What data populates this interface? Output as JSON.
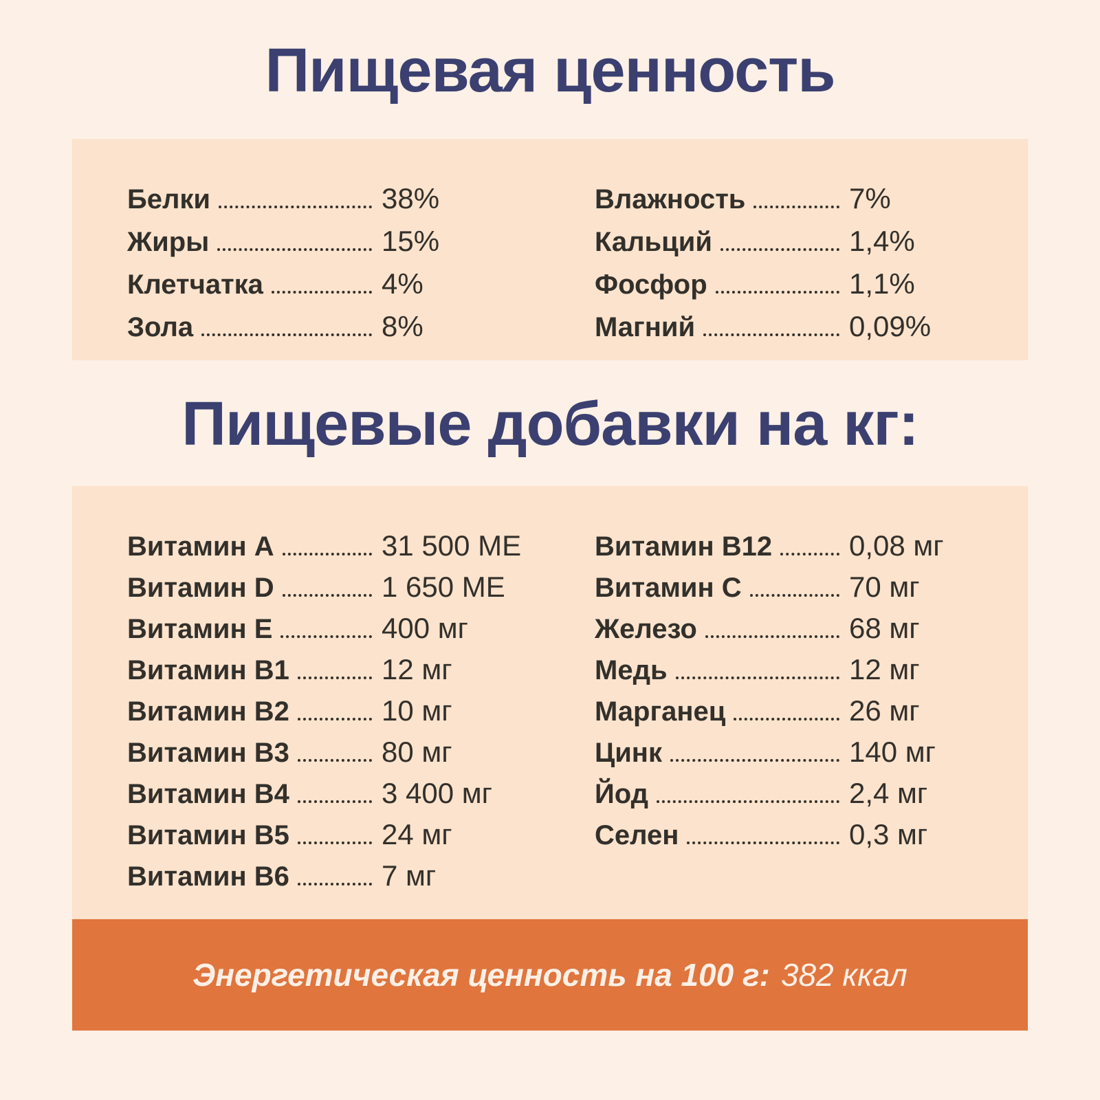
{
  "colors": {
    "background": "#fdf0e6",
    "panel": "#fbe3cd",
    "accent_orange": "#e0753e",
    "title_navy": "#3b4070",
    "text_ink": "#33302b",
    "footer_text": "#fdf0e6"
  },
  "nutrition": {
    "title": "Пищевая ценность",
    "columns": {
      "left": [
        {
          "label": "Белки",
          "value": "38%"
        },
        {
          "label": "Жиры",
          "value": "15%"
        },
        {
          "label": "Клетчатка",
          "value": "4%"
        },
        {
          "label": "Зола",
          "value": "8%"
        }
      ],
      "right": [
        {
          "label": "Влажность",
          "value": "7%"
        },
        {
          "label": "Кальций",
          "value": "1,4%"
        },
        {
          "label": "Фосфор",
          "value": "1,1%"
        },
        {
          "label": "Магний",
          "value": "0,09%"
        }
      ]
    }
  },
  "additives": {
    "title": "Пищевые добавки на кг:",
    "columns": {
      "left": [
        {
          "label": "Витамин A",
          "value": "31 500 МЕ"
        },
        {
          "label": "Витамин D",
          "value": "1 650 МЕ"
        },
        {
          "label": "Витамин E",
          "value": "400 мг"
        },
        {
          "label": "Витамин B1",
          "value": "12 мг"
        },
        {
          "label": "Витамин B2",
          "value": "10 мг"
        },
        {
          "label": "Витамин B3",
          "value": "80 мг"
        },
        {
          "label": "Витамин B4",
          "value": "3 400 мг"
        },
        {
          "label": "Витамин B5",
          "value": "24 мг"
        },
        {
          "label": "Витамин B6",
          "value": "7 мг"
        }
      ],
      "right": [
        {
          "label": "Витамин B12",
          "value": "0,08 мг"
        },
        {
          "label": "Витамин C",
          "value": "70 мг"
        },
        {
          "label": "Железо",
          "value": "68 мг"
        },
        {
          "label": "Медь",
          "value": "12 мг"
        },
        {
          "label": "Марганец",
          "value": "26 мг"
        },
        {
          "label": "Цинк",
          "value": "140 мг"
        },
        {
          "label": "Йод",
          "value": "2,4 мг"
        },
        {
          "label": "Селен",
          "value": "0,3 мг"
        }
      ]
    }
  },
  "energy": {
    "label": "Энергетическая ценность на 100 г:",
    "value": "382 ккал"
  }
}
